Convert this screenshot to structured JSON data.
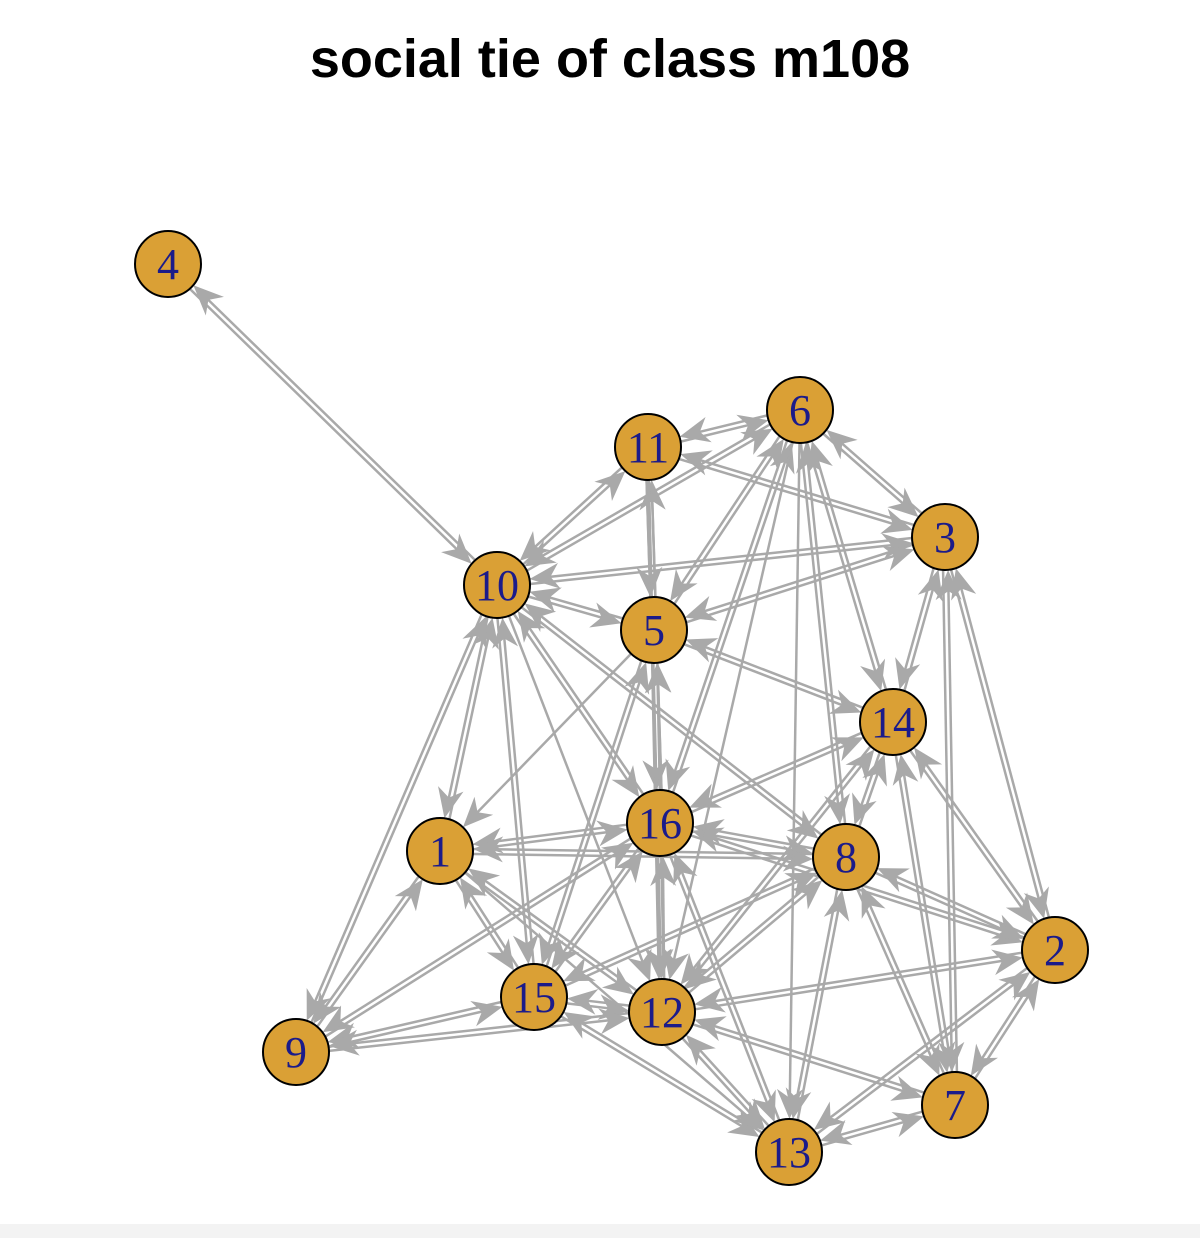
{
  "title": "social tie of class m108",
  "colors": {
    "node_fill": "#DAA035",
    "node_border": "#000000",
    "label": "#1B1B8A",
    "edge": "#A9A9A9"
  },
  "nodes": [
    "1",
    "2",
    "3",
    "4",
    "5",
    "6",
    "7",
    "8",
    "9",
    "10",
    "11",
    "12",
    "13",
    "14",
    "15",
    "16"
  ],
  "mutual_ties": [
    [
      4,
      10
    ],
    [
      11,
      6
    ],
    [
      11,
      5
    ],
    [
      11,
      10
    ],
    [
      11,
      16
    ],
    [
      11,
      3
    ],
    [
      6,
      3
    ],
    [
      6,
      5
    ],
    [
      6,
      10
    ],
    [
      6,
      16
    ],
    [
      6,
      14
    ],
    [
      6,
      8
    ],
    [
      3,
      14
    ],
    [
      3,
      2
    ],
    [
      3,
      7
    ],
    [
      3,
      10
    ],
    [
      3,
      5
    ],
    [
      10,
      5
    ],
    [
      10,
      1
    ],
    [
      10,
      16
    ],
    [
      10,
      15
    ],
    [
      10,
      9
    ],
    [
      10,
      8
    ],
    [
      5,
      16
    ],
    [
      5,
      14
    ],
    [
      5,
      12
    ],
    [
      5,
      15
    ],
    [
      14,
      8
    ],
    [
      14,
      16
    ],
    [
      14,
      2
    ],
    [
      14,
      7
    ],
    [
      14,
      12
    ],
    [
      16,
      1
    ],
    [
      16,
      8
    ],
    [
      16,
      12
    ],
    [
      16,
      15
    ],
    [
      16,
      13
    ],
    [
      16,
      2
    ],
    [
      16,
      9
    ],
    [
      1,
      15
    ],
    [
      1,
      9
    ],
    [
      1,
      12
    ],
    [
      1,
      8
    ],
    [
      8,
      12
    ],
    [
      8,
      13
    ],
    [
      8,
      2
    ],
    [
      8,
      7
    ],
    [
      8,
      15
    ],
    [
      2,
      7
    ],
    [
      2,
      12
    ],
    [
      2,
      13
    ],
    [
      15,
      12
    ],
    [
      15,
      9
    ],
    [
      15,
      13
    ],
    [
      12,
      9
    ],
    [
      12,
      13
    ],
    [
      12,
      7
    ],
    [
      7,
      13
    ]
  ],
  "directed_ties": [
    [
      11,
      12
    ],
    [
      6,
      13
    ],
    [
      6,
      12
    ],
    [
      10,
      12
    ],
    [
      5,
      1
    ],
    [
      1,
      13
    ]
  ]
}
